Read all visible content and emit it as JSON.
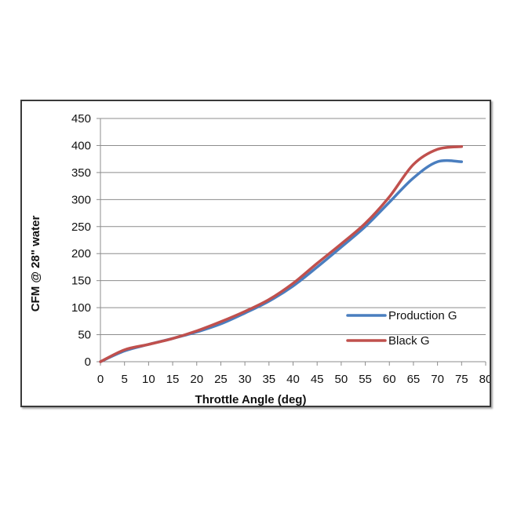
{
  "chart_data": {
    "type": "line",
    "title": "",
    "xlabel": "Throttle Angle (deg)",
    "ylabel": "CFM @ 28\" water",
    "xlim": [
      0,
      80
    ],
    "ylim": [
      0,
      450
    ],
    "x_ticks": [
      0,
      5,
      10,
      15,
      20,
      25,
      30,
      35,
      40,
      45,
      50,
      55,
      60,
      65,
      70,
      75,
      80
    ],
    "x_tick_labels": [
      "0",
      "5",
      "10",
      "15",
      "20",
      "25",
      "30",
      "35",
      "40",
      "45",
      "50",
      "55",
      "60",
      "65",
      "70",
      "75",
      "80"
    ],
    "y_ticks": [
      0,
      50,
      100,
      150,
      200,
      250,
      300,
      350,
      400,
      450
    ],
    "y_tick_labels": [
      "0",
      "50",
      "100",
      "150",
      "200",
      "250",
      "300",
      "350",
      "400",
      "450"
    ],
    "grid": "horizontal",
    "legend_position": "right",
    "series": [
      {
        "name": "Production G",
        "color": "#4a7ebf",
        "x": [
          0,
          5,
          10,
          15,
          20,
          25,
          30,
          35,
          40,
          45,
          50,
          55,
          60,
          65,
          70,
          75
        ],
        "y": [
          0,
          20,
          32,
          43,
          55,
          70,
          90,
          112,
          140,
          175,
          212,
          250,
          295,
          340,
          370,
          370
        ]
      },
      {
        "name": "Black G",
        "color": "#c0504d",
        "x": [
          0,
          5,
          10,
          15,
          20,
          25,
          30,
          35,
          40,
          45,
          50,
          55,
          60,
          65,
          70,
          75
        ],
        "y": [
          0,
          22,
          32,
          43,
          57,
          74,
          93,
          115,
          145,
          182,
          218,
          256,
          305,
          365,
          393,
          398
        ]
      }
    ]
  }
}
